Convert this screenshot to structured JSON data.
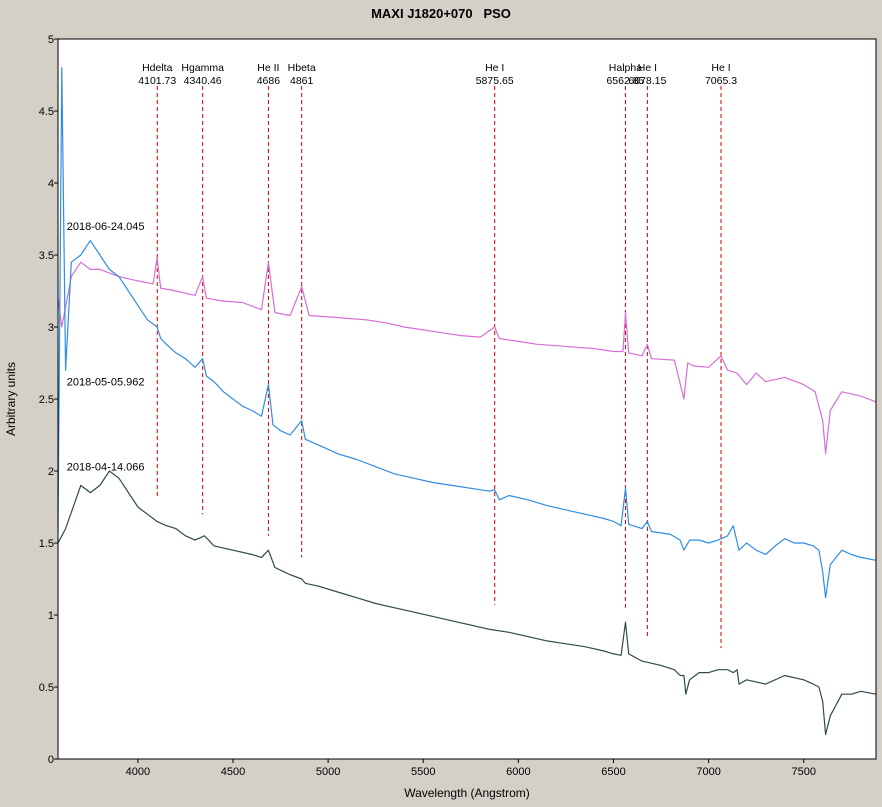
{
  "window": {
    "title": "MAXI J1820+070   PSO"
  },
  "chart_data": {
    "type": "line",
    "title": "MAXI J1820+070   PSO",
    "xlabel": "Wavelength (Angstrom)",
    "ylabel": "Arbitrary units",
    "xlim": [
      3580,
      7880
    ],
    "ylim": [
      0,
      5
    ],
    "x_ticks": [
      4000,
      4500,
      5000,
      5500,
      6000,
      6500,
      7000,
      7500
    ],
    "y_ticks": [
      0,
      0.5,
      1,
      1.5,
      2,
      2.5,
      3,
      3.5,
      4,
      4.5,
      5
    ],
    "grid": false,
    "series": [
      {
        "name": "2018-06-24.045",
        "color": "#d66fd6",
        "x": [
          3580,
          3600,
          3650,
          3700,
          3750,
          3800,
          3900,
          4000,
          4080,
          4101,
          4120,
          4200,
          4300,
          4340,
          4360,
          4450,
          4550,
          4650,
          4686,
          4720,
          4800,
          4861,
          4900,
          5000,
          5100,
          5200,
          5300,
          5400,
          5500,
          5600,
          5700,
          5800,
          5875,
          5900,
          6000,
          6100,
          6200,
          6300,
          6400,
          6500,
          6550,
          6563,
          6580,
          6650,
          6678,
          6700,
          6820,
          6870,
          6890,
          6920,
          7000,
          7065,
          7100,
          7150,
          7200,
          7250,
          7300,
          7400,
          7500,
          7560,
          7600,
          7615,
          7640,
          7700,
          7800,
          7880
        ],
        "y": [
          3.2,
          3.0,
          3.35,
          3.45,
          3.4,
          3.4,
          3.35,
          3.32,
          3.3,
          3.48,
          3.27,
          3.25,
          3.22,
          3.35,
          3.2,
          3.18,
          3.17,
          3.12,
          3.45,
          3.1,
          3.08,
          3.28,
          3.08,
          3.07,
          3.06,
          3.05,
          3.03,
          3.0,
          2.98,
          2.96,
          2.94,
          2.93,
          3.0,
          2.92,
          2.9,
          2.88,
          2.87,
          2.86,
          2.85,
          2.83,
          2.83,
          3.1,
          2.82,
          2.8,
          2.88,
          2.78,
          2.77,
          2.5,
          2.75,
          2.73,
          2.72,
          2.8,
          2.7,
          2.68,
          2.6,
          2.68,
          2.62,
          2.65,
          2.6,
          2.55,
          2.35,
          2.12,
          2.42,
          2.55,
          2.52,
          2.48
        ]
      },
      {
        "name": "2018-05-05.962",
        "color": "#2f8de4",
        "x": [
          3580,
          3600,
          3620,
          3650,
          3700,
          3750,
          3800,
          3850,
          3900,
          3950,
          4000,
          4050,
          4101,
          4120,
          4150,
          4200,
          4250,
          4300,
          4340,
          4360,
          4400,
          4450,
          4500,
          4550,
          4600,
          4650,
          4686,
          4710,
          4750,
          4800,
          4861,
          4880,
          4950,
          5050,
          5150,
          5250,
          5350,
          5450,
          5550,
          5650,
          5750,
          5850,
          5875,
          5900,
          5950,
          6050,
          6150,
          6250,
          6350,
          6450,
          6500,
          6540,
          6563,
          6580,
          6650,
          6678,
          6700,
          6800,
          6850,
          6870,
          6900,
          6950,
          7000,
          7050,
          7100,
          7130,
          7160,
          7200,
          7250,
          7300,
          7350,
          7400,
          7450,
          7500,
          7550,
          7580,
          7600,
          7615,
          7640,
          7700,
          7750,
          7800,
          7880
        ],
        "y": [
          1.6,
          4.8,
          2.7,
          3.45,
          3.5,
          3.6,
          3.5,
          3.4,
          3.35,
          3.25,
          3.15,
          3.05,
          3.0,
          2.92,
          2.88,
          2.82,
          2.78,
          2.72,
          2.78,
          2.66,
          2.62,
          2.55,
          2.5,
          2.45,
          2.42,
          2.38,
          2.6,
          2.32,
          2.28,
          2.25,
          2.35,
          2.22,
          2.18,
          2.12,
          2.08,
          2.03,
          1.98,
          1.95,
          1.92,
          1.9,
          1.88,
          1.86,
          1.87,
          1.8,
          1.83,
          1.8,
          1.76,
          1.73,
          1.7,
          1.67,
          1.65,
          1.62,
          1.88,
          1.63,
          1.6,
          1.65,
          1.58,
          1.56,
          1.52,
          1.45,
          1.52,
          1.52,
          1.5,
          1.52,
          1.55,
          1.62,
          1.45,
          1.5,
          1.45,
          1.42,
          1.48,
          1.53,
          1.5,
          1.5,
          1.48,
          1.45,
          1.3,
          1.12,
          1.35,
          1.45,
          1.42,
          1.4,
          1.38
        ]
      },
      {
        "name": "2018-04-14.066",
        "color": "#2f4a4a",
        "x": [
          3580,
          3600,
          3620,
          3700,
          3750,
          3800,
          3850,
          3900,
          3950,
          4000,
          4050,
          4100,
          4150,
          4200,
          4250,
          4300,
          4350,
          4400,
          4500,
          4600,
          4650,
          4686,
          4720,
          4800,
          4861,
          4880,
          4950,
          5050,
          5150,
          5250,
          5350,
          5450,
          5550,
          5650,
          5750,
          5850,
          5950,
          6050,
          6150,
          6250,
          6350,
          6450,
          6500,
          6540,
          6563,
          6580,
          6650,
          6750,
          6820,
          6850,
          6870,
          6880,
          6900,
          6950,
          7000,
          7050,
          7100,
          7130,
          7150,
          7160,
          7200,
          7300,
          7400,
          7500,
          7550,
          7580,
          7600,
          7615,
          7640,
          7700,
          7750,
          7800,
          7880
        ],
        "y": [
          1.5,
          1.55,
          1.6,
          1.9,
          1.85,
          1.9,
          2.0,
          1.95,
          1.85,
          1.75,
          1.7,
          1.65,
          1.62,
          1.6,
          1.55,
          1.52,
          1.55,
          1.48,
          1.45,
          1.42,
          1.4,
          1.45,
          1.33,
          1.28,
          1.25,
          1.22,
          1.2,
          1.16,
          1.12,
          1.08,
          1.05,
          1.02,
          0.99,
          0.96,
          0.93,
          0.9,
          0.88,
          0.85,
          0.82,
          0.8,
          0.78,
          0.75,
          0.73,
          0.72,
          0.95,
          0.73,
          0.68,
          0.65,
          0.62,
          0.58,
          0.58,
          0.45,
          0.55,
          0.6,
          0.6,
          0.62,
          0.62,
          0.6,
          0.62,
          0.52,
          0.55,
          0.52,
          0.58,
          0.55,
          0.52,
          0.5,
          0.4,
          0.17,
          0.3,
          0.45,
          0.45,
          0.47,
          0.45
        ]
      }
    ],
    "spectrum_labels": [
      {
        "text": "2018-06-24.045",
        "x": 3600,
        "y": 3.7
      },
      {
        "text": "2018-05-05.962",
        "x": 3600,
        "y": 2.62
      },
      {
        "text": "2018-04-14.066",
        "x": 3600,
        "y": 2.03
      }
    ],
    "lines": [
      {
        "name": "Hdelta",
        "wavelength": "4101.73",
        "x": 4101.73,
        "y_bottom": 1.82
      },
      {
        "name": "Hgamma",
        "wavelength": "4340.46",
        "x": 4340.46,
        "y_bottom": 1.7
      },
      {
        "name": "He II",
        "wavelength": "4686",
        "x": 4686,
        "y_bottom": 1.55
      },
      {
        "name": "Hbeta",
        "wavelength": "4861",
        "x": 4861,
        "y_bottom": 1.4
      },
      {
        "name": "He I",
        "wavelength": "5875.65",
        "x": 5875.65,
        "y_bottom": 1.07
      },
      {
        "name": "Halpha",
        "wavelength": "6562.85",
        "x": 6562.85,
        "y_bottom": 1.05
      },
      {
        "name": "He I",
        "wavelength": "6678.15",
        "x": 6678.15,
        "y_bottom": 0.85
      },
      {
        "name": "He I",
        "wavelength": "7065.3",
        "x": 7065.3,
        "y_bottom": 0.77
      }
    ],
    "line_color": "#cc0000"
  }
}
